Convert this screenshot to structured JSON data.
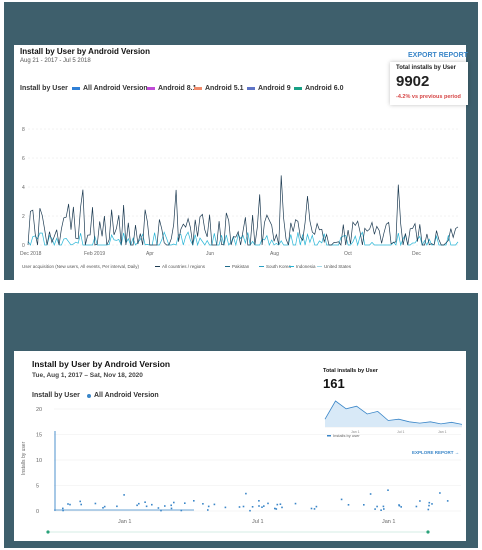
{
  "panel1": {
    "title": "Install by User by Android Version",
    "date_range": "Aug 21 - 2017 - Jul 5 2018",
    "legend": [
      {
        "label": "Install by User",
        "color": ""
      },
      {
        "label": "All Android Version",
        "color": "#2f7fd6"
      },
      {
        "label": "Android 8.1",
        "color": "#c04bd6"
      },
      {
        "label": "Android 5.1",
        "color": "#f08a6a"
      },
      {
        "label": "Android 9",
        "color": "#5f74c6"
      },
      {
        "label": "Android 6.0",
        "color": "#18a085"
      }
    ],
    "export_label": "EXPORT REPORT",
    "kpi": {
      "label": "Total installs by User",
      "value": "9902",
      "change": "-4.2% vs previous period",
      "change_color": "#d64545"
    },
    "y_ticks": [
      "8",
      "6",
      "4",
      "2",
      "0"
    ],
    "x_ticks": [
      "Dec 2018",
      "Feb 2019",
      "Apr",
      "Jun",
      "Aug",
      "Oct",
      "Dec"
    ],
    "footer": [
      "User acquisition (New users, All events, Per interval, Daily)",
      "All countries / regions",
      "Pakistan",
      "South Korea",
      "Indonesia",
      "United States"
    ]
  },
  "panel2": {
    "title": "Install by User  by Android Version",
    "date_range": "Tue, Aug 1, 2017 – Sat, Nov 18, 2020",
    "legend_label": "Install by User",
    "series_label": "All Android Version",
    "series_color": "#3a86c8",
    "y_axis_label": "Installs by user",
    "y_ticks": [
      "20",
      "15",
      "10",
      "5",
      "0"
    ],
    "x_ticks": [
      "Jan 1",
      "Jul 1",
      "Jan 1"
    ],
    "kpi": {
      "label": "Total installs by User",
      "value": "161"
    },
    "mini_legend": "Installs by user",
    "mini_x_ticks": [
      "Jan 1",
      "Jul 1",
      "Jan 1"
    ],
    "explore_label": "EXPLORE REPORT"
  }
}
